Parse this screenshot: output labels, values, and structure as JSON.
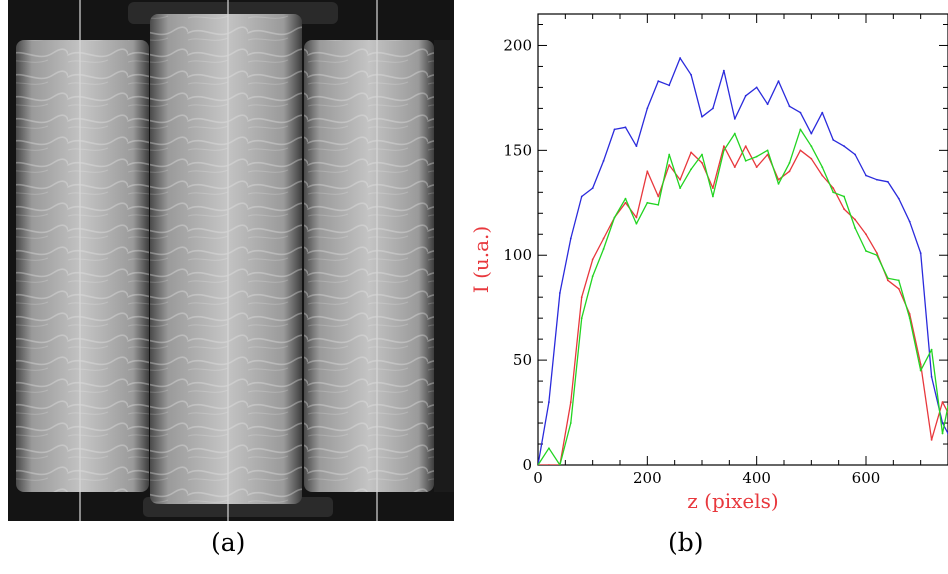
{
  "captions": {
    "a": "(a)",
    "b": "(b)"
  },
  "colors": {
    "blue": "#2b2bdc",
    "red": "#e8383d",
    "green": "#22d422",
    "axis_label": "#e8383d"
  },
  "chart_data": {
    "type": "line",
    "xlabel": "z (pixels)",
    "ylabel": "I (u.a.)",
    "xlim": [
      0,
      750
    ],
    "ylim": [
      0,
      215
    ],
    "xticks": [
      0,
      200,
      400,
      600
    ],
    "yticks": [
      0,
      50,
      100,
      150,
      200
    ],
    "grid": false,
    "x": [
      0,
      20,
      40,
      60,
      80,
      100,
      120,
      140,
      160,
      180,
      200,
      220,
      240,
      260,
      280,
      300,
      320,
      340,
      360,
      380,
      400,
      420,
      440,
      460,
      480,
      500,
      520,
      540,
      560,
      580,
      600,
      620,
      640,
      660,
      680,
      700,
      720,
      740,
      750
    ],
    "series": [
      {
        "color": "blue",
        "values": [
          0,
          30,
          82,
          108,
          128,
          132,
          145,
          160,
          161,
          152,
          170,
          183,
          181,
          194,
          186,
          166,
          170,
          188,
          165,
          176,
          180,
          172,
          183,
          171,
          168,
          158,
          168,
          155,
          152,
          148,
          138,
          136,
          135,
          127,
          116,
          101,
          42,
          20,
          15
        ]
      },
      {
        "color": "red",
        "values": [
          0,
          0,
          0,
          30,
          80,
          98,
          108,
          118,
          125,
          118,
          140,
          128,
          143,
          136,
          149,
          144,
          132,
          152,
          142,
          152,
          142,
          148,
          136,
          140,
          150,
          146,
          138,
          132,
          122,
          117,
          110,
          101,
          88,
          84,
          72,
          48,
          12,
          30,
          25
        ]
      },
      {
        "color": "green",
        "values": [
          0,
          8,
          0,
          20,
          70,
          90,
          103,
          118,
          127,
          115,
          125,
          124,
          148,
          132,
          141,
          148,
          128,
          150,
          158,
          145,
          147,
          150,
          134,
          144,
          160,
          152,
          142,
          130,
          128,
          113,
          102,
          100,
          89,
          88,
          70,
          45,
          55,
          15,
          28
        ]
      }
    ]
  }
}
